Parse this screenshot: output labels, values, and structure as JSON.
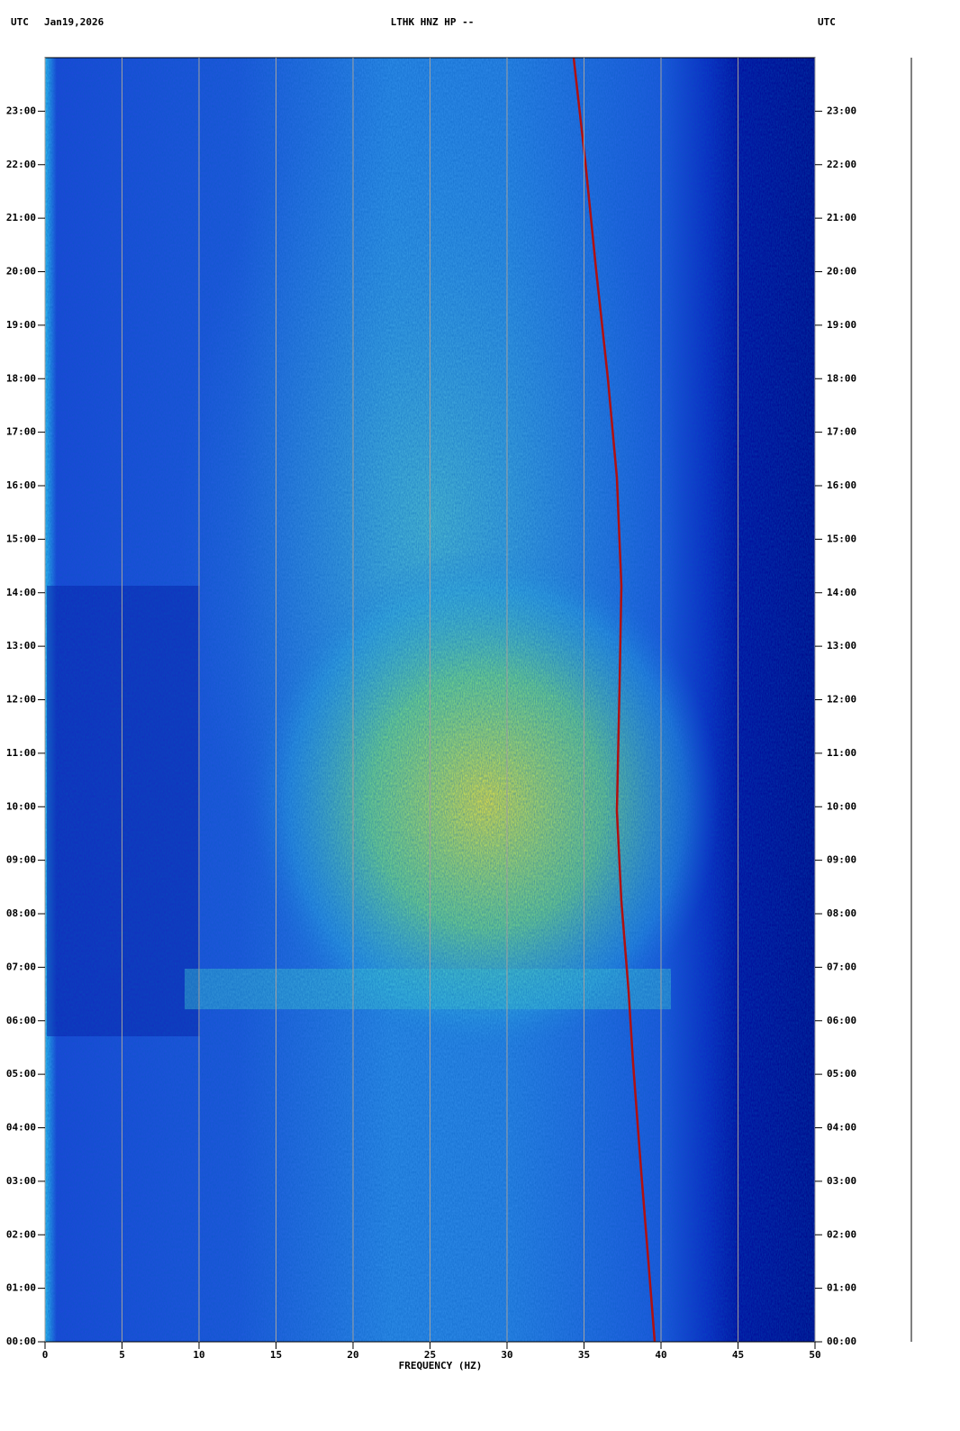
{
  "chart_data": {
    "type": "spectrogram",
    "title": "LTHK HNZ HP --",
    "timezone": "UTC",
    "date": "Jan19,2026",
    "xlabel": "FREQUENCY (HZ)",
    "xlim": [
      0,
      50
    ],
    "xticks": [
      0,
      5,
      10,
      15,
      20,
      25,
      30,
      35,
      40,
      45,
      50
    ],
    "ylim": [
      0,
      24
    ],
    "yticks": [
      {
        "value": 0,
        "label": "00:00"
      },
      {
        "value": 1,
        "label": "01:00"
      },
      {
        "value": 2,
        "label": "02:00"
      },
      {
        "value": 3,
        "label": "03:00"
      },
      {
        "value": 4,
        "label": "04:00"
      },
      {
        "value": 5,
        "label": "05:00"
      },
      {
        "value": 6,
        "label": "06:00"
      },
      {
        "value": 7,
        "label": "07:00"
      },
      {
        "value": 8,
        "label": "08:00"
      },
      {
        "value": 9,
        "label": "09:00"
      },
      {
        "value": 10,
        "label": "10:00"
      },
      {
        "value": 11,
        "label": "11:00"
      },
      {
        "value": 12,
        "label": "12:00"
      },
      {
        "value": 13,
        "label": "13:00"
      },
      {
        "value": 14,
        "label": "14:00"
      },
      {
        "value": 15,
        "label": "15:00"
      },
      {
        "value": 16,
        "label": "16:00"
      },
      {
        "value": 17,
        "label": "17:00"
      },
      {
        "value": 18,
        "label": "18:00"
      },
      {
        "value": 19,
        "label": "19:00"
      },
      {
        "value": 20,
        "label": "20:00"
      },
      {
        "value": 21,
        "label": "21:00"
      },
      {
        "value": 22,
        "label": "22:00"
      },
      {
        "value": 23,
        "label": "23:00"
      }
    ],
    "grid": true
  }
}
